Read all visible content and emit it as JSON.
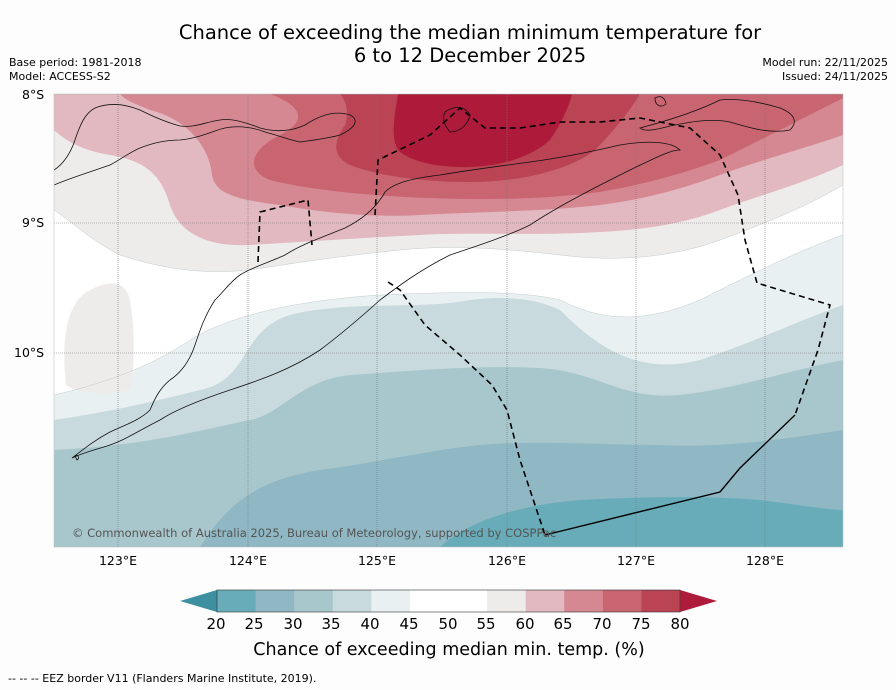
{
  "title_line1": "Chance of exceeding the median minimum temperature for",
  "title_line2": "6 to 12 December 2025",
  "base_period": "Base period: 1981-2018",
  "model": "Model: ACCESS-S2",
  "model_run": "Model run: 22/11/2025",
  "issued": "Issued: 24/11/2025",
  "lat_labels": [
    "8°S",
    "9°S",
    "10°S"
  ],
  "lon_labels": [
    "123°E",
    "124°E",
    "125°E",
    "126°E",
    "127°E",
    "128°E"
  ],
  "copyright": "© Commonwealth of Australia 2025, Bureau of Meteorology, supported by COSPPac",
  "colorbar": {
    "ticks": [
      "20",
      "25",
      "30",
      "35",
      "40",
      "45",
      "50",
      "55",
      "60",
      "65",
      "70",
      "75",
      "80"
    ],
    "label": "Chance of exceeding median min. temp. (%)",
    "colors": [
      "#3e8fa0",
      "#69acb9",
      "#8fb7c4",
      "#a8c7cc",
      "#c8dade",
      "#e9f0f2",
      "#ffffff",
      "#ffffff",
      "#eeeceb",
      "#e2b9c0",
      "#d68892",
      "#c86570",
      "#ba4354",
      "#ae1a3a"
    ]
  },
  "footer": "-- -- -- EEZ border V11 (Flanders Marine Institute, 2019)."
}
